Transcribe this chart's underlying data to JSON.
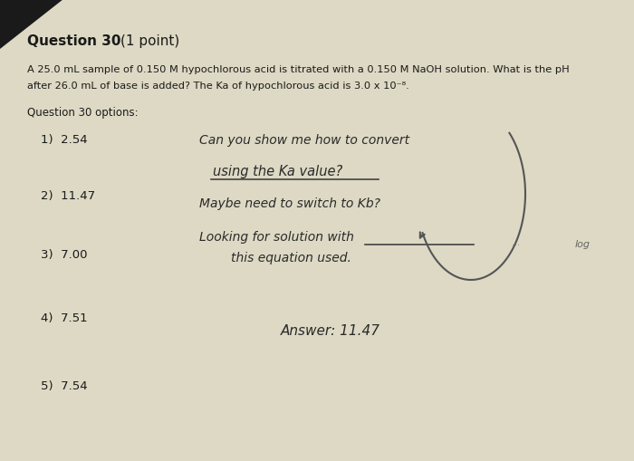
{
  "bg_color": "#ddd9c4",
  "title_bold": "Question 30",
  "title_normal": " (1 point)",
  "q_line1": "A 25.0 mL sample of 0.150 M hypochlorous acid is titrated with a 0.150 M NaOH solution. What is the pH",
  "q_line2": "after 26.0 mL of base is added? The Ka of hypochlorous acid is 3.0 x 10⁻⁸.",
  "options_label": "Question 30 options:",
  "options": [
    "1)  2.54",
    "2)  11.47",
    "3)  7.00",
    "4)  7.51",
    "5)  7.54"
  ],
  "hw_line1": "Can you show me how to convert",
  "hw_line2": "using the Ka value?",
  "hw_line3": "Maybe need to switch to Kb?",
  "hw_line4": "Looking for solution with",
  "hw_line5": "this equation used.",
  "answer_text": "Answer: 11.47",
  "log_text": "log",
  "text_color": "#1a1a1a",
  "hw_color": "#2a2a2a",
  "line_color": "#444444",
  "arrow_color": "#555555"
}
